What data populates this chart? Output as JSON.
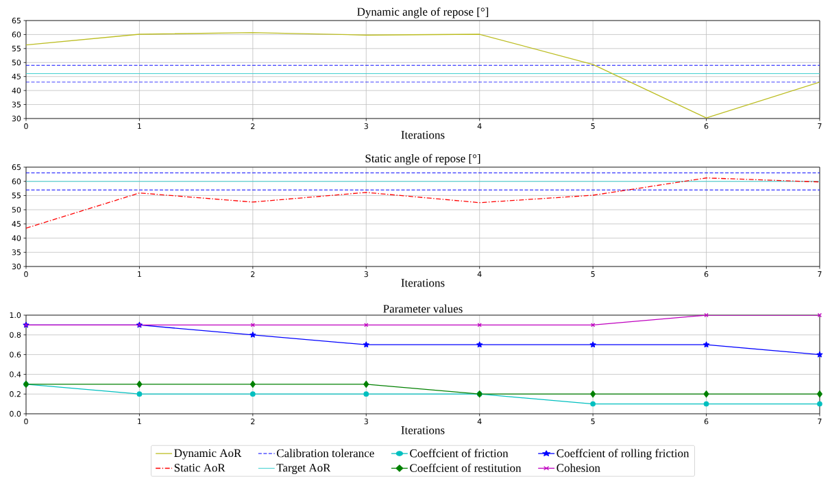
{
  "chart_data": [
    {
      "type": "line",
      "title": "Dynamic angle of repose [°]",
      "xlabel": "Iterations",
      "x": [
        0,
        1,
        2,
        3,
        4,
        5,
        6,
        7
      ],
      "xlim": [
        0,
        7
      ],
      "xticks": [
        0,
        1,
        2,
        3,
        4,
        5,
        6,
        7
      ],
      "ylim": [
        30,
        65
      ],
      "yticks": [
        30,
        35,
        40,
        45,
        50,
        55,
        60,
        65
      ],
      "grid": true,
      "series": [
        {
          "name": "Dynamic AoR",
          "color": "#bcbd22",
          "line_style": "solid",
          "marker": "none",
          "values": [
            56.3,
            60.1,
            60.7,
            59.8,
            60.1,
            49.3,
            30.2,
            43.0
          ]
        }
      ],
      "ref_lines": [
        {
          "axis": "y",
          "value": 49,
          "label": "Calibration tolerance",
          "color": "#0000ff",
          "line_style": "dashed"
        },
        {
          "axis": "y",
          "value": 43,
          "color": "#0000ff",
          "line_style": "dashed"
        },
        {
          "axis": "y",
          "value": 46,
          "label": "Target AoR",
          "color": "#40d0d0",
          "line_style": "solid"
        }
      ]
    },
    {
      "type": "line",
      "title": "Static angle of repose [°]",
      "xlabel": "Iterations",
      "x": [
        0,
        1,
        2,
        3,
        4,
        5,
        6,
        7
      ],
      "xlim": [
        0,
        7
      ],
      "xticks": [
        0,
        1,
        2,
        3,
        4,
        5,
        6,
        7
      ],
      "ylim": [
        30,
        65
      ],
      "yticks": [
        30,
        35,
        40,
        45,
        50,
        55,
        60,
        65
      ],
      "grid": true,
      "series": [
        {
          "name": "Static AoR",
          "color": "#ff0000",
          "line_style": "dashdot",
          "marker": "none",
          "values": [
            43.5,
            55.9,
            52.7,
            56.1,
            52.5,
            55.1,
            61.2,
            59.8
          ]
        }
      ],
      "ref_lines": [
        {
          "axis": "y",
          "value": 63,
          "color": "#0000ff",
          "line_style": "dashed"
        },
        {
          "axis": "y",
          "value": 57,
          "color": "#0000ff",
          "line_style": "dashed"
        },
        {
          "axis": "y",
          "value": 60,
          "color": "#40d0d0",
          "line_style": "solid"
        }
      ]
    },
    {
      "type": "line",
      "title": "Parameter values",
      "xlabel": "Iterations",
      "x": [
        0,
        1,
        2,
        3,
        4,
        5,
        6,
        7
      ],
      "xlim": [
        0,
        7
      ],
      "xticks": [
        0,
        1,
        2,
        3,
        4,
        5,
        6,
        7
      ],
      "ylim": [
        0,
        1
      ],
      "yticks": [
        {
          "value": 0,
          "label": "0.0"
        },
        0.2,
        0.4,
        0.6,
        0.8,
        {
          "value": 1,
          "label": "1.0"
        }
      ],
      "grid": true,
      "legend": "bottom",
      "series": [
        {
          "name": "Coeffcient of friction",
          "color": "#00bfbf",
          "line_style": "solid",
          "marker": "circle",
          "values": [
            0.3,
            0.2,
            0.2,
            0.2,
            0.2,
            0.1,
            0.1,
            0.1
          ]
        },
        {
          "name": "Coeffcient of restitution",
          "color": "#008000",
          "line_style": "solid",
          "marker": "diamond",
          "values": [
            0.3,
            0.3,
            0.3,
            0.3,
            0.2,
            0.2,
            0.2,
            0.2
          ]
        },
        {
          "name": "Coeffcient of rolling friction",
          "color": "#0000ff",
          "line_style": "solid",
          "marker": "star",
          "values": [
            0.9,
            0.9,
            0.8,
            0.7,
            0.7,
            0.7,
            0.7,
            0.6
          ]
        },
        {
          "name": "Cohesion",
          "color": "#bf00bf",
          "line_style": "solid",
          "marker": "cross",
          "values": [
            0.9,
            0.9,
            0.9,
            0.9,
            0.9,
            0.9,
            1.0,
            1.0
          ]
        }
      ]
    }
  ]
}
